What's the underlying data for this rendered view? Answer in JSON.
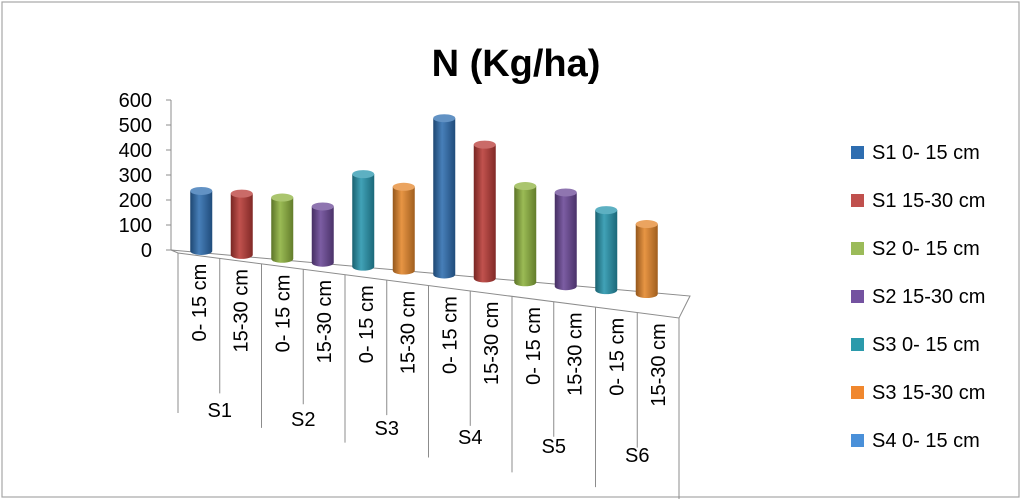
{
  "chart_data": {
    "type": "bar",
    "title": "N (Kg/ha)",
    "xlabel": "",
    "ylabel": "",
    "ylim": [
      0,
      600
    ],
    "yticks": [
      "600",
      "500",
      "400",
      "300",
      "200",
      "100",
      "0"
    ],
    "ytick_values": [
      600,
      500,
      400,
      300,
      200,
      100,
      0
    ],
    "groups": [
      "S1",
      "S2",
      "S3",
      "S4",
      "S5",
      "S6"
    ],
    "categories": [
      "0- 15 cm",
      "15-30 cm",
      "0- 15 cm",
      "15-30 cm",
      "0- 15 cm",
      "15-30 cm",
      "0- 15 cm",
      "15-30 cm",
      "0- 15 cm",
      "15-30 cm",
      "0- 15 cm",
      "15-30 cm"
    ],
    "values": [
      240,
      245,
      245,
      225,
      370,
      335,
      625,
      535,
      385,
      375,
      320,
      280
    ],
    "bar_colors": [
      "#2e6db0",
      "#b83a36",
      "#8db23e",
      "#6a4796",
      "#2795ad",
      "#e4862b",
      "#2e6db0",
      "#b83a36",
      "#8db23e",
      "#6a4796",
      "#2795ad",
      "#e4862b"
    ],
    "legend_position": "right",
    "legend": [
      {
        "label": "S1 0- 15 cm",
        "color": "#2e6db0"
      },
      {
        "label": "S1 15-30 cm",
        "color": "#c0504d"
      },
      {
        "label": "S2 0- 15 cm",
        "color": "#9bbb59"
      },
      {
        "label": "S2 15-30 cm",
        "color": "#7452a0"
      },
      {
        "label": "S3 0- 15 cm",
        "color": "#2b9aab"
      },
      {
        "label": "S3 15-30 cm",
        "color": "#f0872e"
      },
      {
        "label": "S4 0- 15 cm",
        "color": "#4a90d9"
      }
    ],
    "grid": false
  }
}
